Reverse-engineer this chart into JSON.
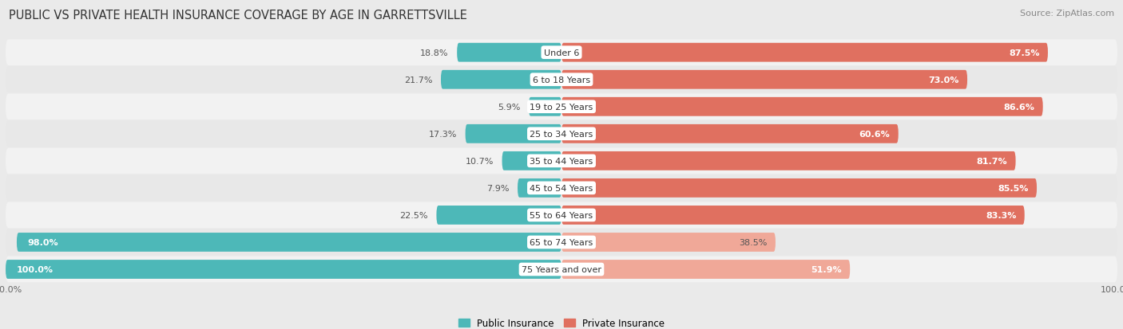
{
  "title": "PUBLIC VS PRIVATE HEALTH INSURANCE COVERAGE BY AGE IN GARRETTSVILLE",
  "source": "Source: ZipAtlas.com",
  "categories": [
    "Under 6",
    "6 to 18 Years",
    "19 to 25 Years",
    "25 to 34 Years",
    "35 to 44 Years",
    "45 to 54 Years",
    "55 to 64 Years",
    "65 to 74 Years",
    "75 Years and over"
  ],
  "public_values": [
    18.8,
    21.7,
    5.9,
    17.3,
    10.7,
    7.9,
    22.5,
    98.0,
    100.0
  ],
  "private_values": [
    87.5,
    73.0,
    86.6,
    60.6,
    81.7,
    85.5,
    83.3,
    38.5,
    51.9
  ],
  "public_color": "#4db8b8",
  "private_color_dark": "#e07060",
  "private_color_light": "#f0a898",
  "bg_color": "#eaeaea",
  "row_bg_light": "#f2f2f2",
  "row_bg_dark": "#e8e8e8",
  "max_value": 100.0,
  "legend_public": "Public Insurance",
  "legend_private": "Private Insurance",
  "title_fontsize": 10.5,
  "cat_fontsize": 8,
  "value_fontsize": 8,
  "source_fontsize": 8,
  "axis_tick_fontsize": 8
}
